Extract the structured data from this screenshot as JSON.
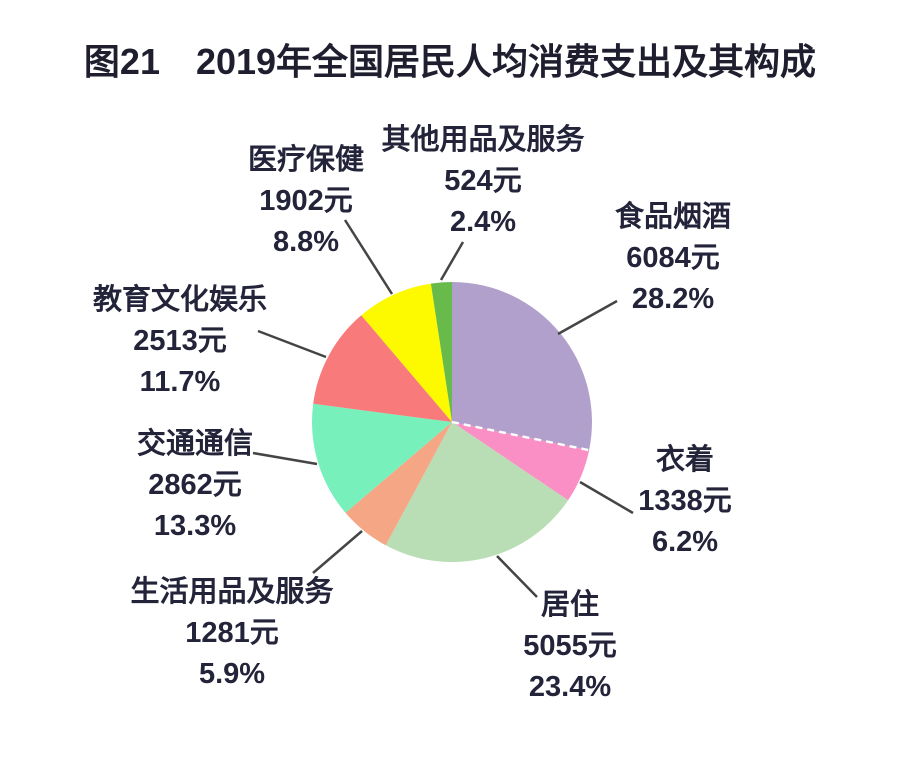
{
  "title": "图21　2019年全国居民人均消费支出及其构成",
  "chart_data": {
    "type": "pie",
    "title": "图21 2019年全国居民人均消费支出及其构成",
    "unit": "元",
    "direction": "clockwise",
    "start_angle_deg": 0,
    "legend_position": "none",
    "categories": [
      "食品烟酒",
      "衣着",
      "居住",
      "生活用品及服务",
      "交通通信",
      "教育文化娱乐",
      "医疗保健",
      "其他用品及服务"
    ],
    "values": [
      6084,
      1338,
      5055,
      1281,
      2862,
      2513,
      1902,
      524
    ],
    "percents": [
      28.2,
      6.2,
      23.4,
      5.9,
      13.3,
      11.7,
      8.8,
      2.4
    ],
    "colors": [
      "#b2a0cc",
      "#fa8fc5",
      "#b9ddb4",
      "#f4a685",
      "#77f0bc",
      "#f87a7a",
      "#fdfa00",
      "#68bb4b"
    ],
    "divider_color": "#ffffff",
    "connector_color": "#454545",
    "labels": [
      {
        "name": "食品烟酒",
        "value_label": "6084元",
        "percent_label": "28.2%"
      },
      {
        "name": "衣着",
        "value_label": "1338元",
        "percent_label": "6.2%"
      },
      {
        "name": "居住",
        "value_label": "5055元",
        "percent_label": "23.4%"
      },
      {
        "name": "生活用品及服务",
        "value_label": "1281元",
        "percent_label": "5.9%"
      },
      {
        "name": "交通通信",
        "value_label": "2862元",
        "percent_label": "13.3%"
      },
      {
        "name": "教育文化娱乐",
        "value_label": "2513元",
        "percent_label": "11.7%"
      },
      {
        "name": "医疗保健",
        "value_label": "1902元",
        "percent_label": "8.8%"
      },
      {
        "name": "其他用品及服务",
        "value_label": "524元",
        "percent_label": "2.4%"
      }
    ]
  }
}
